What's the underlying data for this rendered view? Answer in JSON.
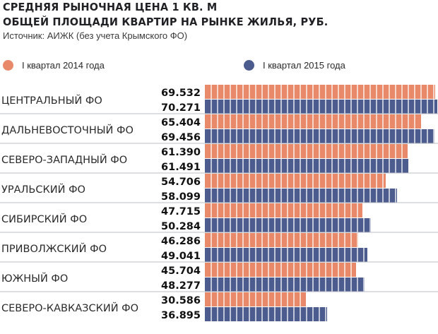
{
  "title": {
    "line1": "СРЕДНЯЯ РЫНОЧНАЯ ЦЕНА 1 КВ. М",
    "line2": "ОБЩЕЙ ПЛОЩАДИ КВАРТИР НА РЫНКЕ ЖИЛЬЯ, РУБ."
  },
  "source": "Источник: АИЖК (без учета Крымского ФО)",
  "colors": {
    "series_2014": "#e8896a",
    "series_2015": "#4d5c8f",
    "separator": "#b8bcc4"
  },
  "chart_data": {
    "type": "bar",
    "orientation": "horizontal",
    "title": "СРЕДНЯЯ РЫНОЧНАЯ ЦЕНА 1 КВ. М ОБЩЕЙ ПЛОЩАДИ КВАРТИР НА РЫНКЕ ЖИЛЬЯ, РУБ.",
    "xlabel": "",
    "ylabel": "",
    "grid": false,
    "legend_position": "top",
    "categories": [
      "ЦЕНТРАЛЬНЫЙ ФО",
      "ДАЛЬНЕВОСТОЧНЫЙ ФО",
      "СЕВЕРО-ЗАПАДНЫЙ ФО",
      "УРАЛЬСКИЙ ФО",
      "СИБИРСКИЙ ФО",
      "ПРИВОЛЖСКИЙ ФО",
      "ЮЖНЫЙ ФО",
      "СЕВЕРО-КАВКАЗСКИЙ ФО"
    ],
    "series": [
      {
        "name": "I квартал 2014 года",
        "values": [
          69532,
          65404,
          61390,
          54706,
          47715,
          46286,
          45704,
          30586
        ],
        "labels": [
          "69.532",
          "65.404",
          "61.390",
          "54.706",
          "47.715",
          "46.286",
          "45.704",
          "30.586"
        ]
      },
      {
        "name": "I квартал 2015 года",
        "values": [
          70271,
          69456,
          61491,
          58099,
          50284,
          49041,
          48277,
          36895
        ],
        "labels": [
          "70.271",
          "69.456",
          "61.491",
          "58.099",
          "50.284",
          "49.041",
          "48.277",
          "36.895"
        ]
      }
    ],
    "xlim": [
      0,
      70271
    ]
  }
}
